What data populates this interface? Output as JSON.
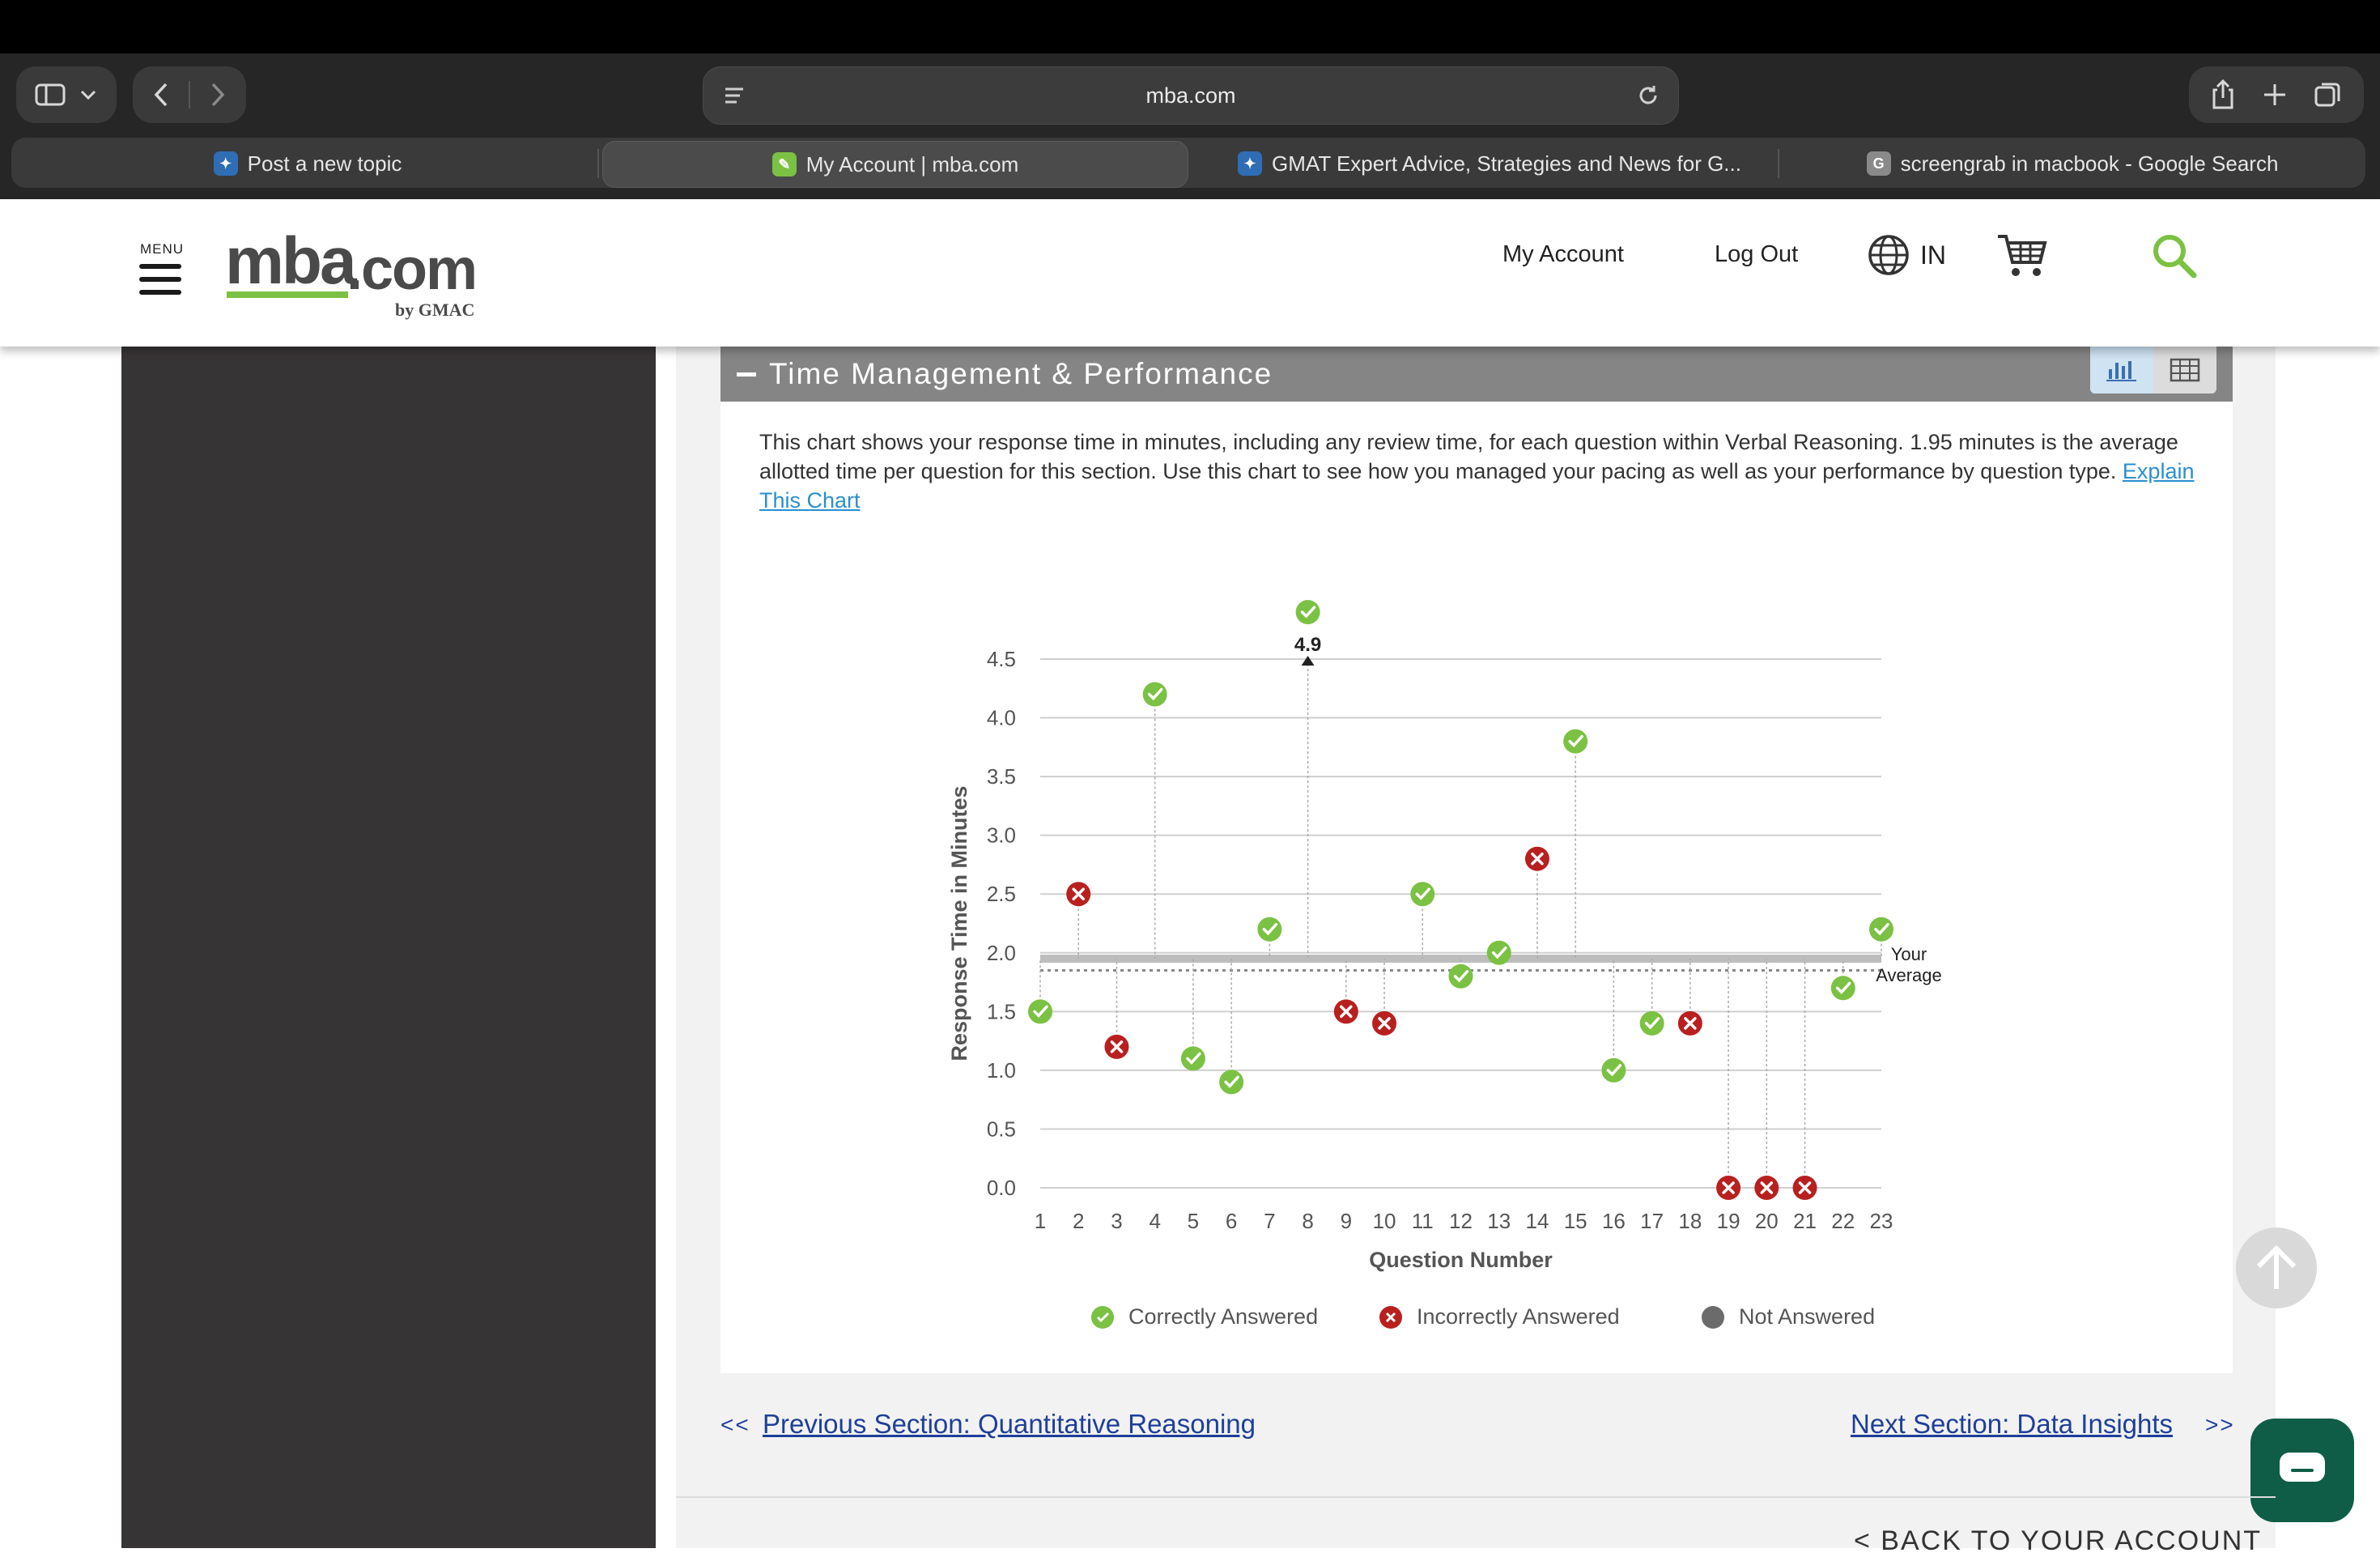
{
  "browser": {
    "url": "mba.com",
    "tabs": [
      {
        "label": "Post a new topic",
        "favicon": "gmat-club-favicon"
      },
      {
        "label": "My Account | mba.com",
        "favicon": "mba-favicon",
        "active": true
      },
      {
        "label": "GMAT Expert Advice, Strategies and News for G...",
        "favicon": "gmat-club-favicon"
      },
      {
        "label": "screengrab in macbook - Google Search",
        "favicon": "google-favicon"
      }
    ]
  },
  "header": {
    "menu_label": "MENU",
    "logo_main": "mba",
    "logo_dot_com": ".com",
    "logo_by": "by GMAC",
    "my_account": "My Account",
    "log_out": "Log Out",
    "region": "IN",
    "colors": {
      "brand_green": "#7bc143",
      "logo_gray": "#4a4a4a"
    }
  },
  "section": {
    "title": "Time Management & Performance",
    "description": "This chart shows your response time in minutes, including any review time, for each question within Verbal Reasoning. 1.95 minutes is the average allotted time per question for this section. Use this chart to see how you managed your pacing as well as your performance by question type.",
    "explain_link": "Explain This Chart"
  },
  "chart_data": {
    "type": "scatter",
    "xlabel": "Question Number",
    "ylabel": "Response Time in Minutes",
    "ylim": [
      0,
      4.5
    ],
    "yticks": [
      "0.0",
      "0.5",
      "1.0",
      "1.5",
      "2.0",
      "2.5",
      "3.0",
      "3.5",
      "4.0",
      "4.5"
    ],
    "xticks": [
      "1",
      "2",
      "3",
      "4",
      "5",
      "6",
      "7",
      "8",
      "9",
      "10",
      "11",
      "12",
      "13",
      "14",
      "15",
      "16",
      "17",
      "18",
      "19",
      "20",
      "21",
      "22",
      "23"
    ],
    "points": [
      {
        "q": 1,
        "time": 1.5,
        "status": "correct"
      },
      {
        "q": 2,
        "time": 2.5,
        "status": "incorrect"
      },
      {
        "q": 3,
        "time": 1.2,
        "status": "incorrect"
      },
      {
        "q": 4,
        "time": 4.2,
        "status": "correct"
      },
      {
        "q": 5,
        "time": 1.1,
        "status": "correct"
      },
      {
        "q": 6,
        "time": 0.9,
        "status": "correct"
      },
      {
        "q": 7,
        "time": 2.2,
        "status": "correct"
      },
      {
        "q": 8,
        "time": 4.9,
        "status": "correct",
        "label": "4.9"
      },
      {
        "q": 9,
        "time": 1.5,
        "status": "incorrect"
      },
      {
        "q": 10,
        "time": 1.4,
        "status": "incorrect"
      },
      {
        "q": 11,
        "time": 2.5,
        "status": "correct"
      },
      {
        "q": 12,
        "time": 1.8,
        "status": "correct"
      },
      {
        "q": 13,
        "time": 2.0,
        "status": "correct"
      },
      {
        "q": 14,
        "time": 2.8,
        "status": "incorrect"
      },
      {
        "q": 15,
        "time": 3.8,
        "status": "correct"
      },
      {
        "q": 16,
        "time": 1.0,
        "status": "correct"
      },
      {
        "q": 17,
        "time": 1.4,
        "status": "correct"
      },
      {
        "q": 18,
        "time": 1.4,
        "status": "incorrect"
      },
      {
        "q": 19,
        "time": 0.0,
        "status": "incorrect"
      },
      {
        "q": 20,
        "time": 0.0,
        "status": "incorrect"
      },
      {
        "q": 21,
        "time": 0.0,
        "status": "incorrect"
      },
      {
        "q": 22,
        "time": 1.7,
        "status": "correct"
      },
      {
        "q": 23,
        "time": 2.2,
        "status": "correct"
      }
    ],
    "allotted_time": 1.95,
    "your_average": 1.85,
    "average_label_line1": "Your",
    "average_label_line2": "Average",
    "legend": [
      {
        "label": "Correctly Answered",
        "status": "correct"
      },
      {
        "label": "Incorrectly Answered",
        "status": "incorrect"
      },
      {
        "label": "Not Answered",
        "status": "not-answered"
      }
    ],
    "colors": {
      "correct": "#7bc143",
      "incorrect": "#b8201f",
      "not_answered": "#6b6b6b",
      "grid": "#cfcfcf"
    }
  },
  "navigation": {
    "prev_arrows": "<<",
    "prev_label": "Previous Section: Quantitative Reasoning",
    "next_label": "Next Section: Data Insights",
    "next_arrows": ">>",
    "back_to_account": "< BACK TO YOUR ACCOUNT"
  }
}
